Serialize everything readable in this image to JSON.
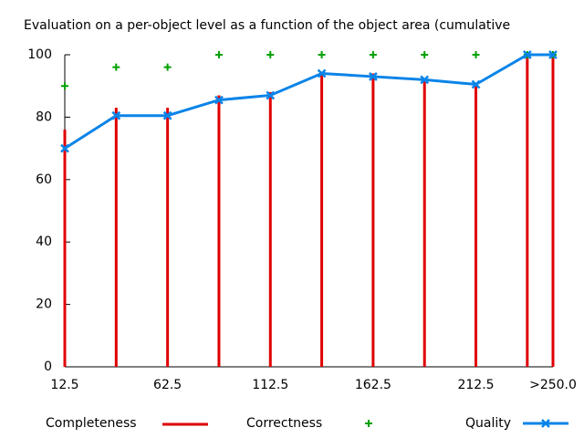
{
  "chart_data": {
    "type": "line",
    "title": "Evaluation on a per-object level as a function of the object area (cumulative",
    "x": [
      12.5,
      37.5,
      62.5,
      87.5,
      112.5,
      137.5,
      162.5,
      187.5,
      212.5,
      237.5,
      250
    ],
    "xlim": [
      12.5,
      250
    ],
    "xticks": [
      12.5,
      62.5,
      112.5,
      162.5,
      212.5,
      {
        "value": 250,
        "label": ">250.0"
      }
    ],
    "ylim": [
      0,
      100
    ],
    "yticks": [
      0,
      20,
      40,
      60,
      80,
      100
    ],
    "series": [
      {
        "name": "Completeness",
        "color": "#e00000",
        "style": "impulses",
        "values": [
          76,
          83,
          83,
          87,
          88,
          94,
          94,
          92,
          91,
          100,
          100
        ]
      },
      {
        "name": "Correctness",
        "color": "#00a000",
        "style": "points",
        "values": [
          90,
          96,
          96,
          100,
          100,
          100,
          100,
          100,
          100,
          100,
          100
        ]
      },
      {
        "name": "Quality",
        "color": "#0a84e8",
        "style": "linespoints",
        "values": [
          70,
          80.5,
          80.5,
          85.5,
          87,
          94,
          93,
          92,
          90.5,
          100,
          100
        ]
      }
    ]
  }
}
